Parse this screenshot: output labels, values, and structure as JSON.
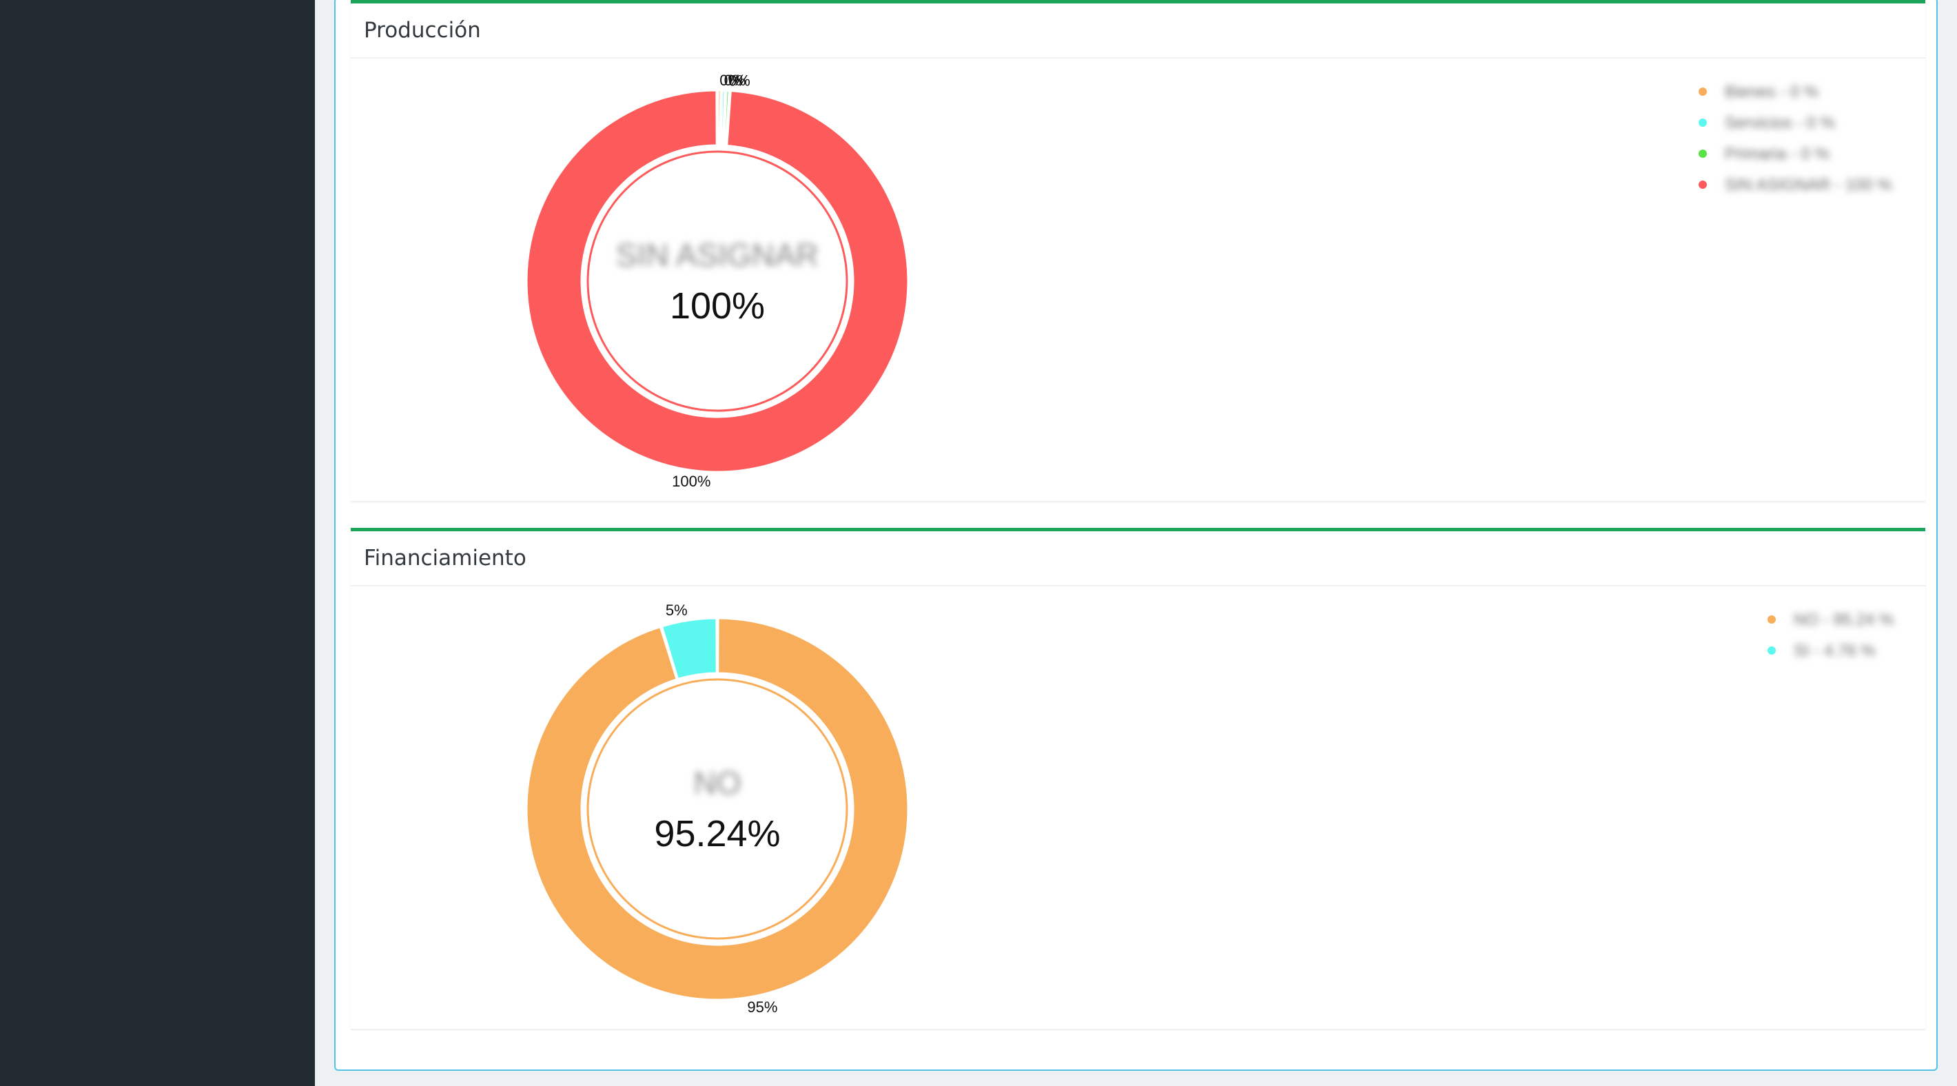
{
  "cards": [
    {
      "title": "Producción"
    },
    {
      "title": "Financiamiento"
    }
  ],
  "chart_data": [
    {
      "type": "pie",
      "title": "Producción",
      "center_label": "SIN ASIGNAR",
      "center_value": "100%",
      "slices": [
        {
          "name": "Bienes",
          "value": 0,
          "label": "0%",
          "legend": "Bienes - 0 %",
          "color": "#f8ad5a"
        },
        {
          "name": "Servicios",
          "value": 0,
          "label": "0%",
          "legend": "Servicios - 0 %",
          "color": "#5cf8f0"
        },
        {
          "name": "Primaria",
          "value": 0,
          "label": "0%",
          "legend": "Primaria - 0 %",
          "color": "#59e346"
        },
        {
          "name": "SIN ASIGNAR",
          "value": 100,
          "label": "100%",
          "legend": "SIN ASIGNAR - 100 %",
          "color": "#fd5b5b"
        }
      ],
      "legend_position": "top-right"
    },
    {
      "type": "pie",
      "title": "Financiamiento",
      "center_label": "NO",
      "center_value": "95.24%",
      "slices": [
        {
          "name": "NO",
          "value": 95.24,
          "label": "95%",
          "legend": "NO - 95.24 %",
          "color": "#f8ad5a"
        },
        {
          "name": "SI",
          "value": 4.76,
          "label": "5%",
          "legend": "SI - 4.76 %",
          "color": "#5cf8f0"
        }
      ],
      "legend_position": "top-right"
    }
  ]
}
